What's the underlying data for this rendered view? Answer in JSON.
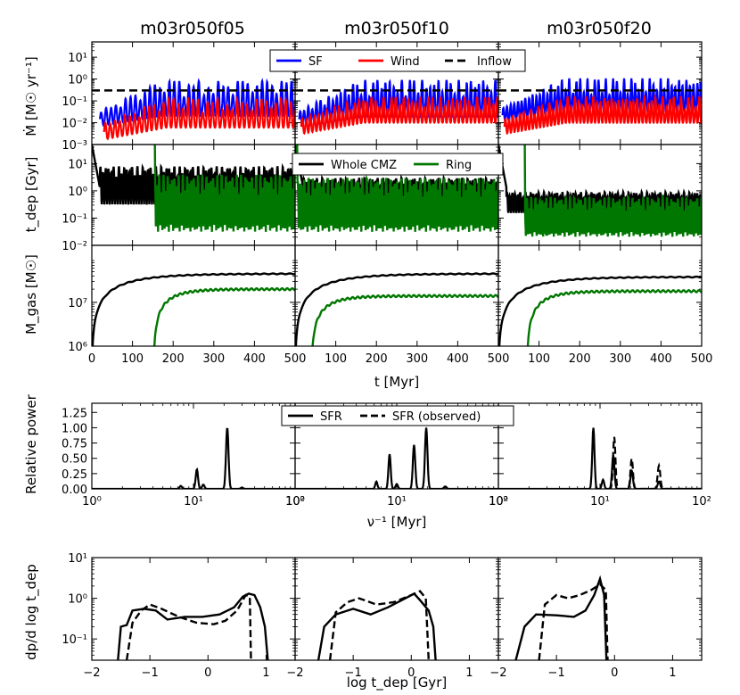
{
  "chart_data": {
    "type": "line",
    "column_titles": [
      "m03r050f05",
      "m03r050f10",
      "m03r050f20"
    ],
    "rows": [
      {
        "id": "mdot",
        "ylabel": "Ṁ [M☉ yr⁻¹]",
        "yscale": "log",
        "ylim": [
          0.001,
          50
        ],
        "yticks": [
          0.001,
          0.01,
          0.1,
          1,
          10
        ],
        "ytick_labels": [
          "10⁻³",
          "10⁻²",
          "10⁻¹",
          "10⁰",
          "10¹"
        ],
        "xlim": [
          0,
          500
        ],
        "legend": [
          "SF",
          "Wind",
          "Inflow"
        ],
        "legend_location": "top-center",
        "series_colors": {
          "SF": "#0000ff",
          "Wind": "#ff0000",
          "Inflow": "#000000"
        },
        "inflow_level": 0.3,
        "panels": [
          {
            "sf": {
              "start": 20,
              "low": 0.02,
              "high": 0.8,
              "period": 12
            },
            "wind": {
              "start": 30,
              "low": 0.006,
              "high": 0.12,
              "period": 12
            }
          },
          {
            "sf": {
              "start": 10,
              "low": 0.02,
              "high": 0.9,
              "period": 10
            },
            "wind": {
              "start": 15,
              "low": 0.01,
              "high": 0.15,
              "period": 10
            }
          },
          {
            "sf": {
              "start": 10,
              "low": 0.03,
              "high": 1.0,
              "period": 9
            },
            "wind": {
              "start": 15,
              "low": 0.01,
              "high": 0.15,
              "period": 9
            }
          }
        ]
      },
      {
        "id": "tdep",
        "ylabel": "t_dep [Gyr]",
        "yscale": "log",
        "ylim": [
          0.01,
          50
        ],
        "yticks": [
          0.01,
          0.1,
          1,
          10
        ],
        "ytick_labels": [
          "10⁻²",
          "10⁻¹",
          "10⁰",
          "10¹"
        ],
        "xlim": [
          0,
          500
        ],
        "legend": [
          "Whole CMZ",
          "Ring"
        ],
        "legend_location": "top-center",
        "series_colors": {
          "Whole CMZ": "#000000",
          "Ring": "#007700"
        },
        "panels": [
          {
            "cmz": {
              "low": 0.3,
              "high": 8
            },
            "ring": {
              "start": 155,
              "low": 0.03,
              "high": 4
            }
          },
          {
            "cmz": {
              "low": 0.3,
              "high": 3
            },
            "ring": {
              "start": 5,
              "low": 0.03,
              "high": 3
            }
          },
          {
            "cmz": {
              "low": 0.15,
              "high": 0.9
            },
            "ring": {
              "start": 65,
              "low": 0.02,
              "high": 0.6
            }
          }
        ]
      },
      {
        "id": "mgas",
        "ylabel": "M_gas [M☉]",
        "yscale": "log",
        "ylim": [
          1000000,
          200000000
        ],
        "yticks": [
          1000000,
          10000000
        ],
        "ytick_labels": [
          "10⁶",
          "10⁷"
        ],
        "xlim": [
          0,
          500
        ],
        "xticks": [
          0,
          100,
          200,
          300,
          400,
          500
        ],
        "xlabel": "t [Myr]",
        "panels": [
          {
            "cmz_final": 45000000,
            "ring_start": 152,
            "ring_final": 20000000
          },
          {
            "cmz_final": 45000000,
            "ring_start": 40,
            "ring_final": 14000000
          },
          {
            "cmz_final": 38000000,
            "ring_start": 70,
            "ring_final": 18000000
          }
        ]
      },
      {
        "id": "power",
        "ylabel": "Relative power",
        "yscale": "linear",
        "ylim": [
          0,
          1.4
        ],
        "yticks": [
          0,
          0.25,
          0.5,
          0.75,
          1.0,
          1.25
        ],
        "ytick_labels": [
          "0.00",
          "0.25",
          "0.50",
          "0.75",
          "1.00",
          "1.25"
        ],
        "xscale": "log",
        "xlim": [
          1,
          100
        ],
        "xticks": [
          1,
          10,
          100
        ],
        "xtick_labels": [
          "10⁰",
          "10¹",
          "10²"
        ],
        "xlabel": "ν⁻¹ [Myr]",
        "legend": [
          "SFR",
          "SFR (observed)"
        ],
        "legend_location": "top-center",
        "panels": [
          {
            "sfr": [
              [
                7.5,
                0.05
              ],
              [
                10.8,
                0.32
              ],
              [
                12.5,
                0.07
              ],
              [
                21.5,
                1.0
              ],
              [
                30,
                0.02
              ]
            ],
            "observed": []
          },
          {
            "sfr": [
              [
                6.3,
                0.12
              ],
              [
                8.5,
                0.57
              ],
              [
                10,
                0.08
              ],
              [
                14.8,
                0.72
              ],
              [
                19.5,
                1.0
              ],
              [
                30,
                0.04
              ]
            ],
            "observed": []
          },
          {
            "sfr": [
              [
                8.6,
                1.0
              ],
              [
                10.7,
                0.15
              ],
              [
                13.5,
                0.55
              ],
              [
                20.5,
                0.3
              ],
              [
                38,
                0.12
              ]
            ],
            "observed": [
              [
                13.8,
                0.85
              ],
              [
                20.5,
                0.5
              ],
              [
                38,
                0.38
              ]
            ]
          }
        ]
      },
      {
        "id": "dist",
        "ylabel": "dp/d log t_dep",
        "yscale": "log",
        "ylim": [
          0.03,
          10
        ],
        "yticks": [
          0.1,
          1,
          10
        ],
        "ytick_labels": [
          "10⁻¹",
          "10⁰",
          "10¹"
        ],
        "xlim": [
          -2,
          1.5
        ],
        "xticks": [
          -2,
          -1,
          0,
          1
        ],
        "xtick_labels": [
          "−2",
          "−1",
          "0",
          "1"
        ],
        "xlabel": "log t_dep [Gyr]",
        "panels": [
          {
            "solid": [
              [
                -1.55,
                0.03
              ],
              [
                -1.5,
                0.2
              ],
              [
                -1.4,
                0.22
              ],
              [
                -1.3,
                0.5
              ],
              [
                -1.1,
                0.55
              ],
              [
                -0.9,
                0.5
              ],
              [
                -0.7,
                0.3
              ],
              [
                -0.4,
                0.35
              ],
              [
                -0.1,
                0.35
              ],
              [
                0.2,
                0.4
              ],
              [
                0.45,
                0.6
              ],
              [
                0.6,
                1.1
              ],
              [
                0.7,
                1.3
              ],
              [
                0.8,
                1.2
              ],
              [
                0.9,
                0.6
              ],
              [
                0.98,
                0.2
              ],
              [
                1.03,
                0.03
              ]
            ],
            "dashed": [
              [
                -1.4,
                0.03
              ],
              [
                -1.3,
                0.25
              ],
              [
                -1.15,
                0.5
              ],
              [
                -1.0,
                0.7
              ],
              [
                -0.8,
                0.55
              ],
              [
                -0.5,
                0.35
              ],
              [
                -0.2,
                0.25
              ],
              [
                0.1,
                0.23
              ],
              [
                0.3,
                0.28
              ],
              [
                0.5,
                0.5
              ],
              [
                0.65,
                1.2
              ],
              [
                0.72,
                1.1
              ],
              [
                0.74,
                0.03
              ]
            ]
          },
          {
            "solid": [
              [
                -1.6,
                0.03
              ],
              [
                -1.5,
                0.2
              ],
              [
                -1.3,
                0.4
              ],
              [
                -1.0,
                0.55
              ],
              [
                -0.7,
                0.4
              ],
              [
                -0.4,
                0.6
              ],
              [
                -0.1,
                1.0
              ],
              [
                0.05,
                1.3
              ],
              [
                0.15,
                0.9
              ],
              [
                0.3,
                0.5
              ],
              [
                0.38,
                0.2
              ],
              [
                0.42,
                0.03
              ]
            ],
            "dashed": [
              [
                -1.4,
                0.03
              ],
              [
                -1.3,
                0.45
              ],
              [
                -1.1,
                0.8
              ],
              [
                -0.9,
                1.0
              ],
              [
                -0.6,
                0.7
              ],
              [
                -0.3,
                0.8
              ],
              [
                0.0,
                1.2
              ],
              [
                0.15,
                1.5
              ],
              [
                0.25,
                1.0
              ],
              [
                0.3,
                0.03
              ]
            ]
          },
          {
            "solid": [
              [
                -1.7,
                0.03
              ],
              [
                -1.55,
                0.2
              ],
              [
                -1.35,
                0.4
              ],
              [
                -1.0,
                0.38
              ],
              [
                -0.7,
                0.35
              ],
              [
                -0.5,
                0.5
              ],
              [
                -0.35,
                1.2
              ],
              [
                -0.25,
                3.0
              ],
              [
                -0.18,
                1.2
              ],
              [
                -0.14,
                0.03
              ]
            ],
            "dashed": [
              [
                -1.3,
                0.03
              ],
              [
                -1.2,
                0.7
              ],
              [
                -1.0,
                1.2
              ],
              [
                -0.8,
                1.0
              ],
              [
                -0.6,
                1.2
              ],
              [
                -0.4,
                1.6
              ],
              [
                -0.25,
                2.2
              ],
              [
                -0.15,
                1.6
              ],
              [
                -0.12,
                0.03
              ]
            ]
          }
        ]
      }
    ]
  }
}
